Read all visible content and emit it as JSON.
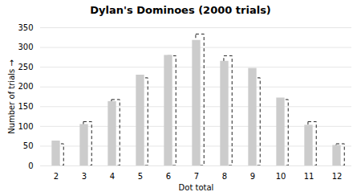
{
  "chart_data": {
    "type": "bar",
    "title": "Dylan's Dominoes (2000 trials)",
    "xlabel": "Dot total",
    "ylabel": "Number of trials",
    "categories": [
      2,
      3,
      4,
      5,
      6,
      7,
      8,
      9,
      10,
      11,
      12
    ],
    "series": [
      {
        "color": "#cccccc",
        "values": [
          63,
          105,
          163,
          230,
          280,
          318,
          265,
          247,
          172,
          103,
          52
        ]
      },
      {
        "color": "#222222",
        "line_style": "dashed",
        "values": [
          55,
          111,
          167,
          222,
          278,
          333,
          278,
          222,
          167,
          111,
          55
        ]
      }
    ],
    "ylim": [
      0,
      350
    ],
    "yticks": [
      0,
      50,
      100,
      150,
      200,
      250,
      300,
      350
    ],
    "grid": true
  }
}
